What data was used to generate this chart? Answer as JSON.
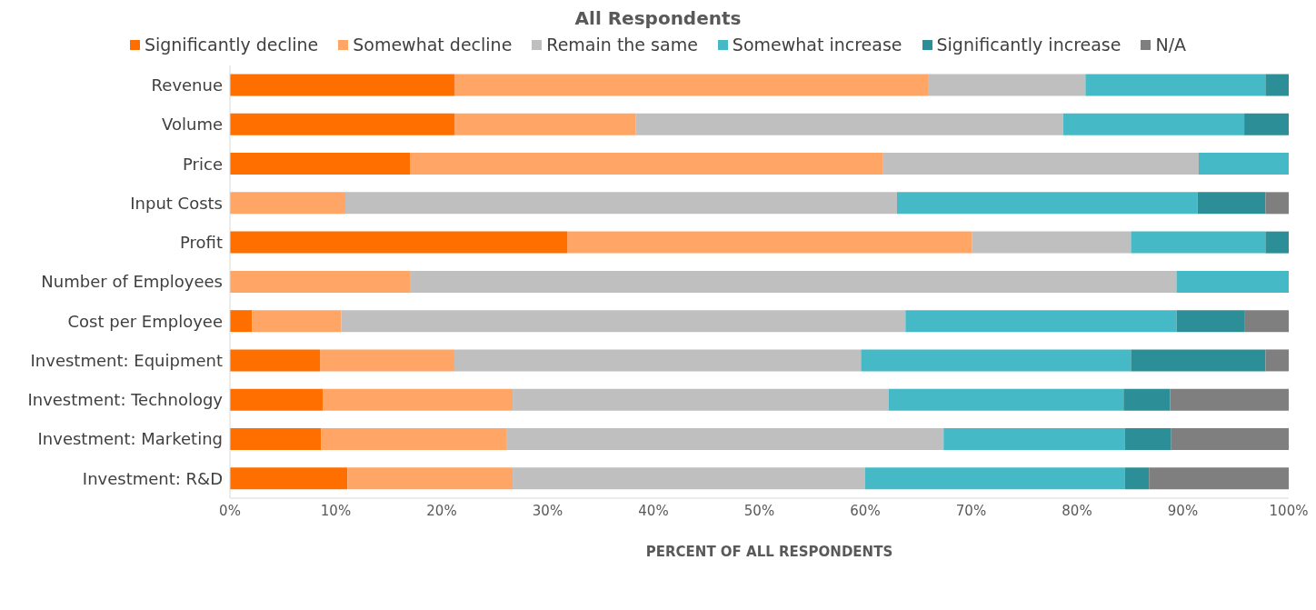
{
  "chart_data": {
    "type": "bar",
    "title": "All Respondents",
    "xlabel": "PERCENT OF ALL RESPONDENTS",
    "orientation": "horizontal",
    "stacked": true,
    "legend": "top",
    "grid": false,
    "categories": [
      "Revenue",
      "Volume",
      "Price",
      "Input Costs",
      "Profit",
      "Number of Employees",
      "Cost per Employee",
      "Investment: Equipment",
      "Investment: Technology",
      "Investment: Marketing",
      "Investment: R&D"
    ],
    "xlim": [
      0,
      100
    ],
    "xticks": [
      {
        "value": 0,
        "label": "0%"
      },
      {
        "value": 10,
        "label": "10%"
      },
      {
        "value": 20,
        "label": "20%"
      },
      {
        "value": 30,
        "label": "30%"
      },
      {
        "value": 40,
        "label": "40%"
      },
      {
        "value": 50,
        "label": "50%"
      },
      {
        "value": 60,
        "label": "60%"
      },
      {
        "value": 70,
        "label": "70%"
      },
      {
        "value": 80,
        "label": "80%"
      },
      {
        "value": 90,
        "label": "90%"
      },
      {
        "value": 100,
        "label": "100%"
      }
    ],
    "series": [
      {
        "name": "Significantly decline",
        "color": "#fe6f00",
        "values": [
          21.2,
          21.2,
          17.0,
          0,
          31.9,
          0,
          2.1,
          8.5,
          8.8,
          8.6,
          11.1
        ]
      },
      {
        "name": "Somewhat decline",
        "color": "#ffa666",
        "values": [
          44.8,
          17.1,
          44.7,
          10.9,
          38.2,
          17.0,
          8.4,
          12.7,
          17.9,
          17.5,
          15.6
        ]
      },
      {
        "name": "Remain the same",
        "color": "#bfbfbf",
        "values": [
          14.8,
          40.4,
          29.8,
          52.1,
          15.0,
          72.4,
          53.3,
          38.4,
          35.5,
          41.3,
          33.3
        ]
      },
      {
        "name": "Somewhat increase",
        "color": "#45bac6",
        "values": [
          17.0,
          17.1,
          8.5,
          28.4,
          12.7,
          10.6,
          25.6,
          25.5,
          22.2,
          17.1,
          24.5
        ]
      },
      {
        "name": "Significantly increase",
        "color": "#2c8f97",
        "values": [
          2.2,
          4.2,
          0,
          6.4,
          2.2,
          0,
          6.4,
          12.7,
          4.4,
          4.4,
          2.3
        ]
      },
      {
        "name": "N/A",
        "color": "#7f7f7f",
        "values": [
          0,
          0,
          0,
          2.2,
          0,
          0,
          4.2,
          2.2,
          11.2,
          11.1,
          13.2
        ]
      }
    ]
  }
}
